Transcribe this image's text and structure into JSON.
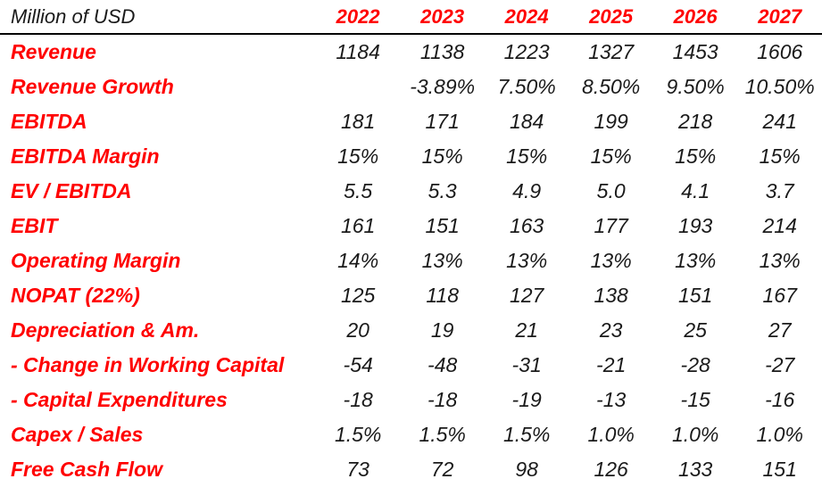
{
  "table": {
    "unit_label": "Million of USD",
    "years": [
      "2022",
      "2023",
      "2024",
      "2025",
      "2026",
      "2027"
    ],
    "rows": [
      {
        "label": "Revenue",
        "values": [
          "1184",
          "1138",
          "1223",
          "1327",
          "1453",
          "1606"
        ]
      },
      {
        "label": "Revenue Growth",
        "values": [
          "",
          "-3.89%",
          "7.50%",
          "8.50%",
          "9.50%",
          "10.50%"
        ]
      },
      {
        "label": "EBITDA",
        "values": [
          "181",
          "171",
          "184",
          "199",
          "218",
          "241"
        ]
      },
      {
        "label": "EBITDA Margin",
        "values": [
          "15%",
          "15%",
          "15%",
          "15%",
          "15%",
          "15%"
        ]
      },
      {
        "label": "EV / EBITDA",
        "values": [
          "5.5",
          "5.3",
          "4.9",
          "5.0",
          "4.1",
          "3.7"
        ]
      },
      {
        "label": "EBIT",
        "values": [
          "161",
          "151",
          "163",
          "177",
          "193",
          "214"
        ]
      },
      {
        "label": "Operating Margin",
        "values": [
          "14%",
          "13%",
          "13%",
          "13%",
          "13%",
          "13%"
        ]
      },
      {
        "label": "NOPAT (22%)",
        "values": [
          "125",
          "118",
          "127",
          "138",
          "151",
          "167"
        ]
      },
      {
        "label": "Depreciation & Am.",
        "values": [
          "20",
          "19",
          "21",
          "23",
          "25",
          "27"
        ]
      },
      {
        "label": "- Change in Working Capital",
        "values": [
          "-54",
          "-48",
          "-31",
          "-21",
          "-28",
          "-27"
        ]
      },
      {
        "label": "- Capital Expenditures",
        "values": [
          "-18",
          "-18",
          "-19",
          "-13",
          "-15",
          "-16"
        ]
      },
      {
        "label": "Capex / Sales",
        "values": [
          "1.5%",
          "1.5%",
          "1.5%",
          "1.0%",
          "1.0%",
          "1.0%"
        ]
      },
      {
        "label": "Free Cash Flow",
        "values": [
          "73",
          "72",
          "98",
          "126",
          "133",
          "151"
        ]
      }
    ]
  },
  "colors": {
    "label_color": "#ff0000",
    "value_color": "#1a1a1a",
    "rule_color": "#000000"
  }
}
